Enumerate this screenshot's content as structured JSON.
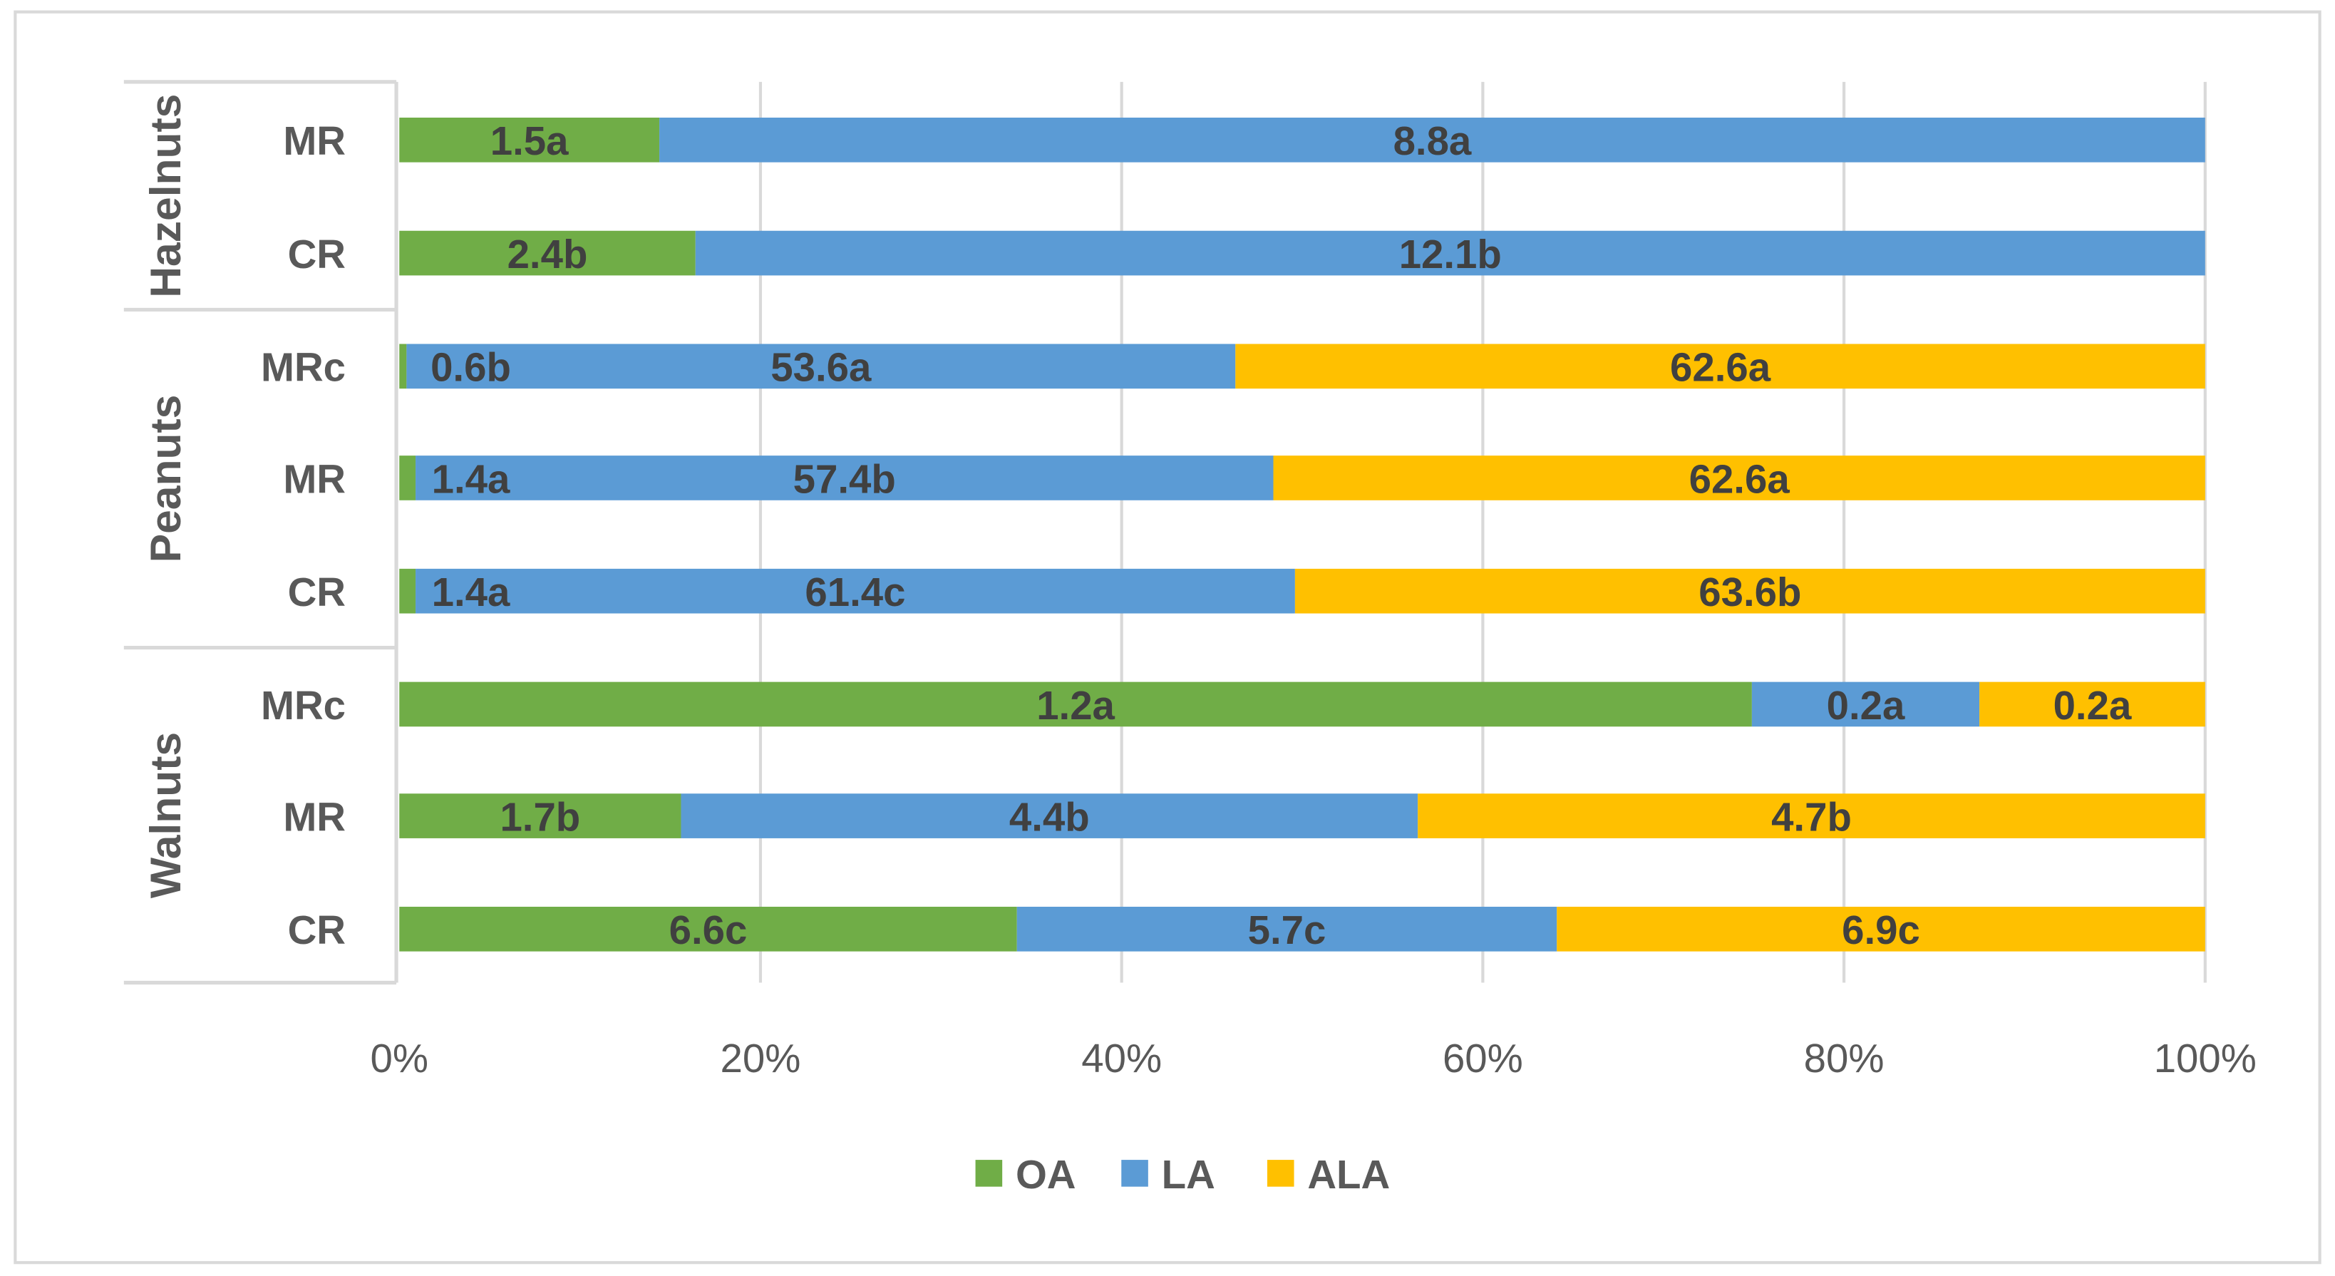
{
  "chart_data": {
    "type": "bar",
    "orientation": "horizontal",
    "stacked": "percent",
    "title": "",
    "xlabel": "",
    "ylabel": "",
    "xlim": [
      0,
      100
    ],
    "x_ticks": [
      "0%",
      "20%",
      "40%",
      "60%",
      "80%",
      "100%"
    ],
    "grid": true,
    "legend_position": "bottom",
    "series": [
      {
        "name": "OA",
        "color": "#70AD47"
      },
      {
        "name": "LA",
        "color": "#5B9BD5"
      },
      {
        "name": "ALA",
        "color": "#FFC000"
      }
    ],
    "groups": [
      {
        "name": "Hazelnuts",
        "rows": [
          {
            "category": "MR",
            "shares_percent": [
              14.4,
              85.6,
              0
            ],
            "labels": [
              "1.5a",
              "8.8a",
              ""
            ]
          },
          {
            "category": "CR",
            "shares_percent": [
              16.4,
              83.6,
              0
            ],
            "labels": [
              "2.4b",
              "12.1b",
              ""
            ]
          }
        ]
      },
      {
        "name": "Peanuts",
        "rows": [
          {
            "category": "MRc",
            "shares_percent": [
              0.4,
              45.9,
              53.7
            ],
            "labels": [
              "0.6b",
              "53.6a",
              "62.6a"
            ]
          },
          {
            "category": "MR",
            "shares_percent": [
              0.9,
              47.5,
              51.6
            ],
            "labels": [
              "1.4a",
              "57.4b",
              "62.6a"
            ]
          },
          {
            "category": "CR",
            "shares_percent": [
              0.9,
              48.7,
              50.4
            ],
            "labels": [
              "1.4a",
              "61.4c",
              "63.6b"
            ]
          }
        ]
      },
      {
        "name": "Walnuts",
        "rows": [
          {
            "category": "MRc",
            "shares_percent": [
              74.9,
              12.6,
              12.5
            ],
            "labels": [
              "1.2a",
              "0.2a",
              "0.2a"
            ]
          },
          {
            "category": "MR",
            "shares_percent": [
              15.6,
              40.8,
              43.6
            ],
            "labels": [
              "1.7b",
              "4.4b",
              "4.7b"
            ]
          },
          {
            "category": "CR",
            "shares_percent": [
              34.2,
              29.9,
              35.9
            ],
            "labels": [
              "6.6c",
              "5.7c",
              "6.9c"
            ]
          }
        ]
      }
    ]
  }
}
